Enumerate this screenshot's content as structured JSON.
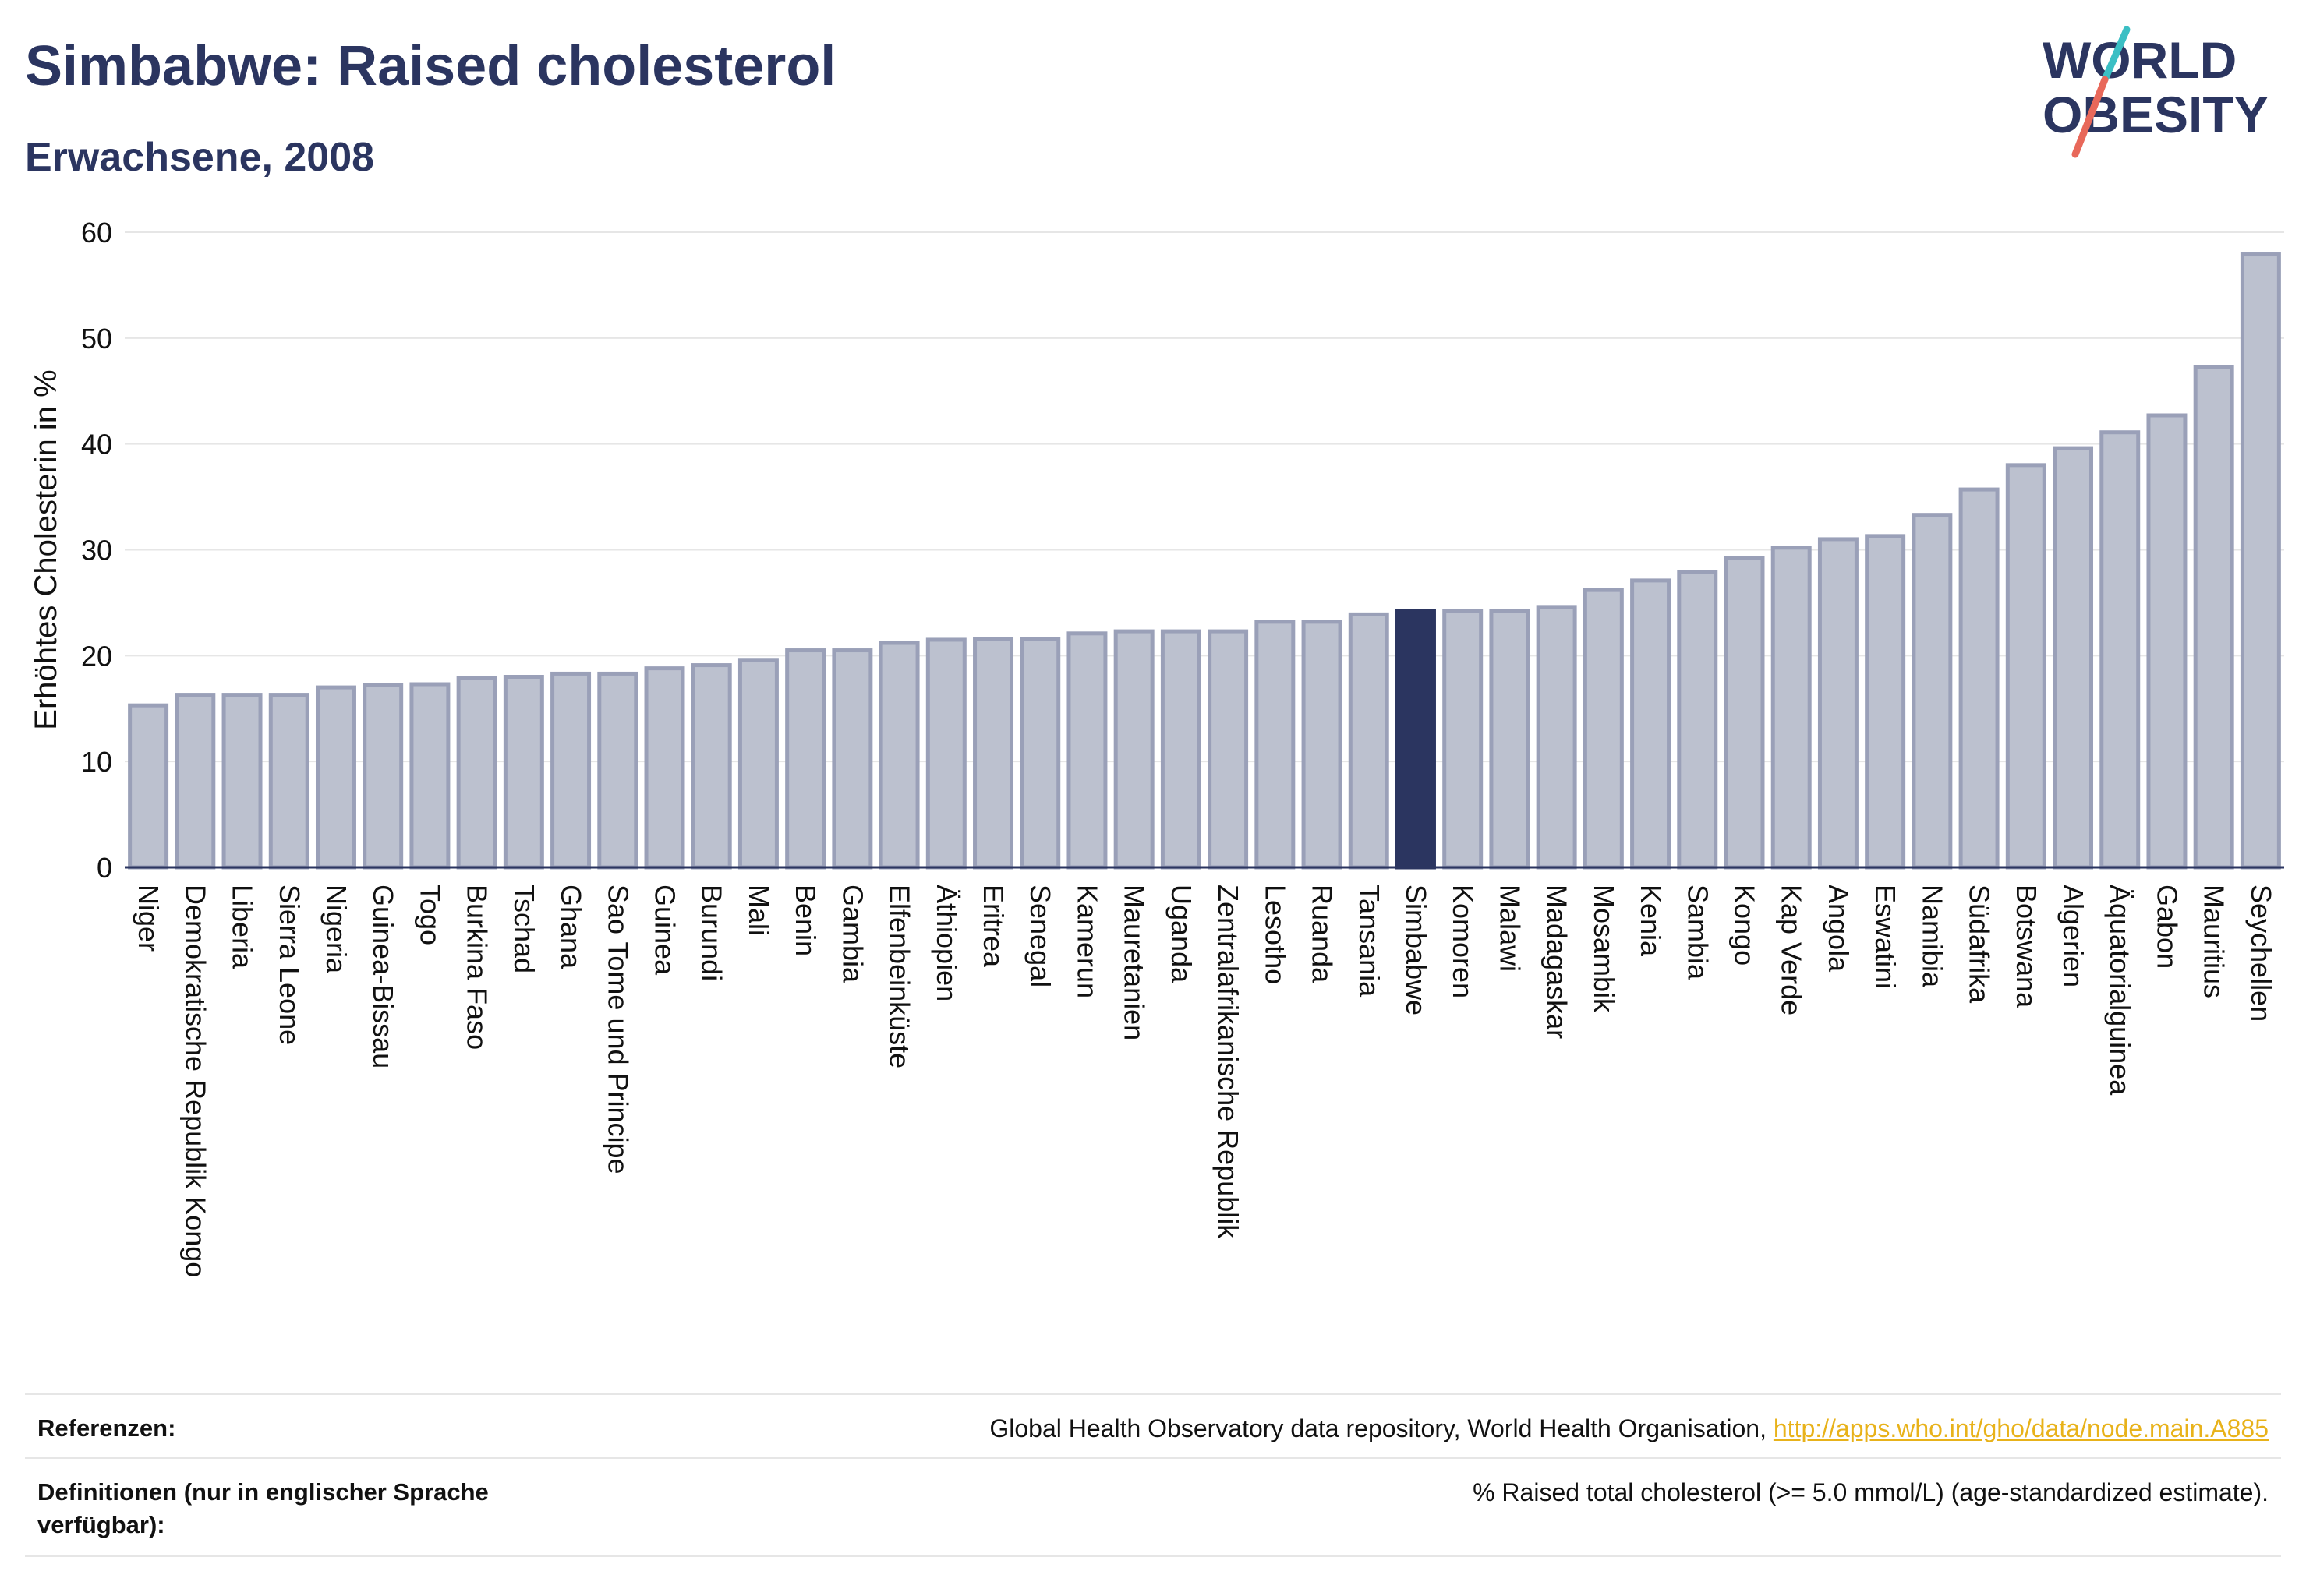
{
  "header": {
    "title": "Simbabwe: Raised cholesterol",
    "subtitle": "Erwachsene, 2008"
  },
  "logo": {
    "line1": "WORLD",
    "line2": "OBESITY",
    "colors": {
      "text": "#2b3560",
      "slash_top": "#3bbfc4",
      "slash_bottom": "#e8685a"
    }
  },
  "colors": {
    "bar_fill": "#bcc1cf",
    "bar_stroke": "#9aa0b8",
    "highlight": "#2b3560",
    "grid": "#e6e6e6",
    "axis": "#2b3560"
  },
  "chart_data": {
    "type": "bar",
    "ylabel": "Erhöhtes Cholesterin in %",
    "ylim": [
      0,
      60
    ],
    "yticks": [
      0,
      10,
      20,
      30,
      40,
      50,
      60
    ],
    "grid": true,
    "highlight": "Simbabwe",
    "categories": [
      "Niger",
      "Demokratische Republik Kongo",
      "Liberia",
      "Sierra Leone",
      "Nigeria",
      "Guinea-Bissau",
      "Togo",
      "Burkina Faso",
      "Tschad",
      "Ghana",
      "Sao Tome und Principe",
      "Guinea",
      "Burundi",
      "Mali",
      "Benin",
      "Gambia",
      "Elfenbeinküste",
      "Äthiopien",
      "Eritrea",
      "Senegal",
      "Kamerun",
      "Mauretanien",
      "Uganda",
      "Zentralafrikanische Republik",
      "Lesotho",
      "Ruanda",
      "Tansania",
      "Simbabwe",
      "Komoren",
      "Malawi",
      "Madagaskar",
      "Mosambik",
      "Kenia",
      "Sambia",
      "Kongo",
      "Kap Verde",
      "Angola",
      "Eswatini",
      "Namibia",
      "Südafrika",
      "Botswana",
      "Algerien",
      "Äquatorialguinea",
      "Gabon",
      "Mauritius",
      "Seychellen"
    ],
    "values": [
      15.3,
      16.3,
      16.3,
      16.3,
      17.0,
      17.2,
      17.3,
      17.9,
      18.0,
      18.3,
      18.3,
      18.8,
      19.1,
      19.6,
      20.5,
      20.5,
      21.2,
      21.5,
      21.6,
      21.6,
      22.1,
      22.3,
      22.3,
      22.3,
      23.2,
      23.2,
      23.9,
      24.2,
      24.2,
      24.2,
      24.6,
      26.2,
      27.1,
      27.9,
      29.2,
      30.2,
      31.0,
      31.3,
      33.3,
      35.7,
      38.0,
      39.6,
      41.1,
      42.7,
      47.3,
      57.9
    ]
  },
  "footer": {
    "references_label": "Referenzen:",
    "references_text": "Global Health Observatory data repository, World Health Organisation, ",
    "references_link": "http://apps.who.int/gho/data/node.main.A885",
    "definitions_label": "Definitionen (nur in englischer Sprache verfügbar):",
    "definitions_text": "% Raised total cholesterol (>= 5.0 mmol/L) (age-standardized estimate)."
  }
}
